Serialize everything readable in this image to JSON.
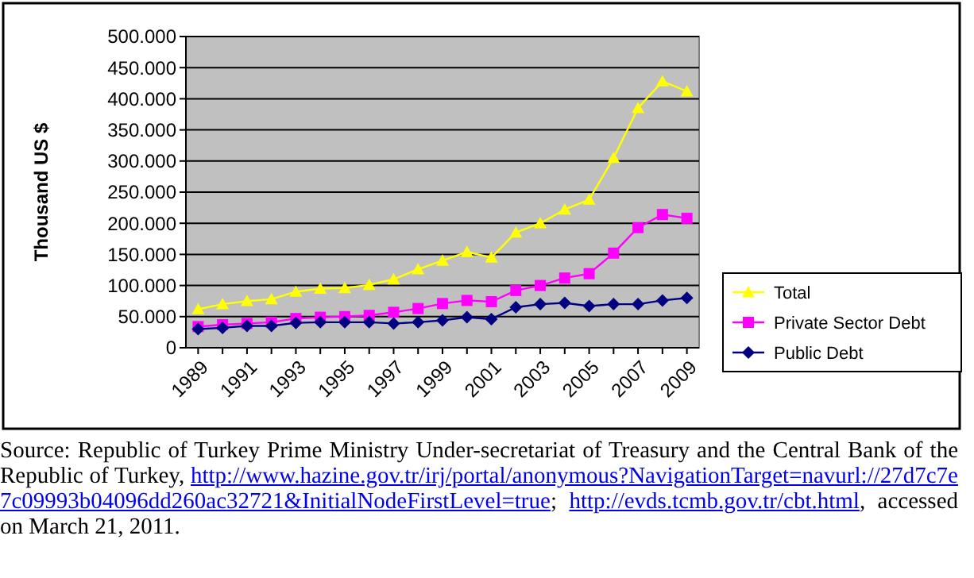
{
  "chart_data": {
    "type": "line",
    "ylabel": "Thousand US $",
    "categories": [
      "1989",
      null,
      "1991",
      null,
      "1993",
      null,
      "1995",
      null,
      "1997",
      null,
      "1999",
      null,
      "2001",
      null,
      "2003",
      null,
      "2005",
      null,
      "2007",
      null,
      "2009"
    ],
    "series": [
      {
        "name": "Total",
        "color": "#ffff00",
        "marker": "triangle",
        "values": [
          62000,
          70000,
          75000,
          78000,
          90000,
          95000,
          96000,
          101000,
          110000,
          126000,
          140000,
          154000,
          145000,
          185000,
          200000,
          222000,
          238000,
          305000,
          385000,
          428000,
          412000
        ]
      },
      {
        "name": "Private Sector Debt",
        "color": "#ff00ff",
        "marker": "square",
        "values": [
          34000,
          37000,
          39000,
          41000,
          47000,
          49000,
          50000,
          52000,
          57000,
          63000,
          71000,
          76000,
          74000,
          92000,
          100000,
          112000,
          119000,
          152000,
          193000,
          214000,
          208000
        ]
      },
      {
        "name": "Public Debt",
        "color": "#000080",
        "marker": "diamond",
        "values": [
          30000,
          32000,
          35000,
          35000,
          40000,
          41000,
          41000,
          41000,
          39000,
          41000,
          44000,
          49000,
          46000,
          65000,
          70000,
          72000,
          67000,
          70000,
          70000,
          76000,
          80000
        ]
      }
    ],
    "ylim": [
      0,
      500000
    ],
    "yticks": [
      {
        "value": 0,
        "label": "0"
      },
      {
        "value": 50000,
        "label": "50.000"
      },
      {
        "value": 100000,
        "label": "100.000"
      },
      {
        "value": 150000,
        "label": "150.000"
      },
      {
        "value": 200000,
        "label": "200.000"
      },
      {
        "value": 250000,
        "label": "250.000"
      },
      {
        "value": 300000,
        "label": "300.000"
      },
      {
        "value": 350000,
        "label": "350.000"
      },
      {
        "value": 400000,
        "label": "400.000"
      },
      {
        "value": 450000,
        "label": "450.000"
      },
      {
        "value": 500000,
        "label": "500.000"
      }
    ],
    "grid": "y",
    "legend": "right",
    "annotations": [
      "Source: Republic of Turkey Prime Ministry Under-secretariat of Treasury and the Central Bank of the Republic of Turkey, http://www.hazine.gov.tr/irj/portal/anonymous?NavigationTarget=navurl://27d7c7e7c09993b04096dd260ac32721&InitialNodeFirstLevel=true; http://evds.tcmb.gov.tr/cbt.html, accessed on March 21, 2011."
    ]
  }
}
